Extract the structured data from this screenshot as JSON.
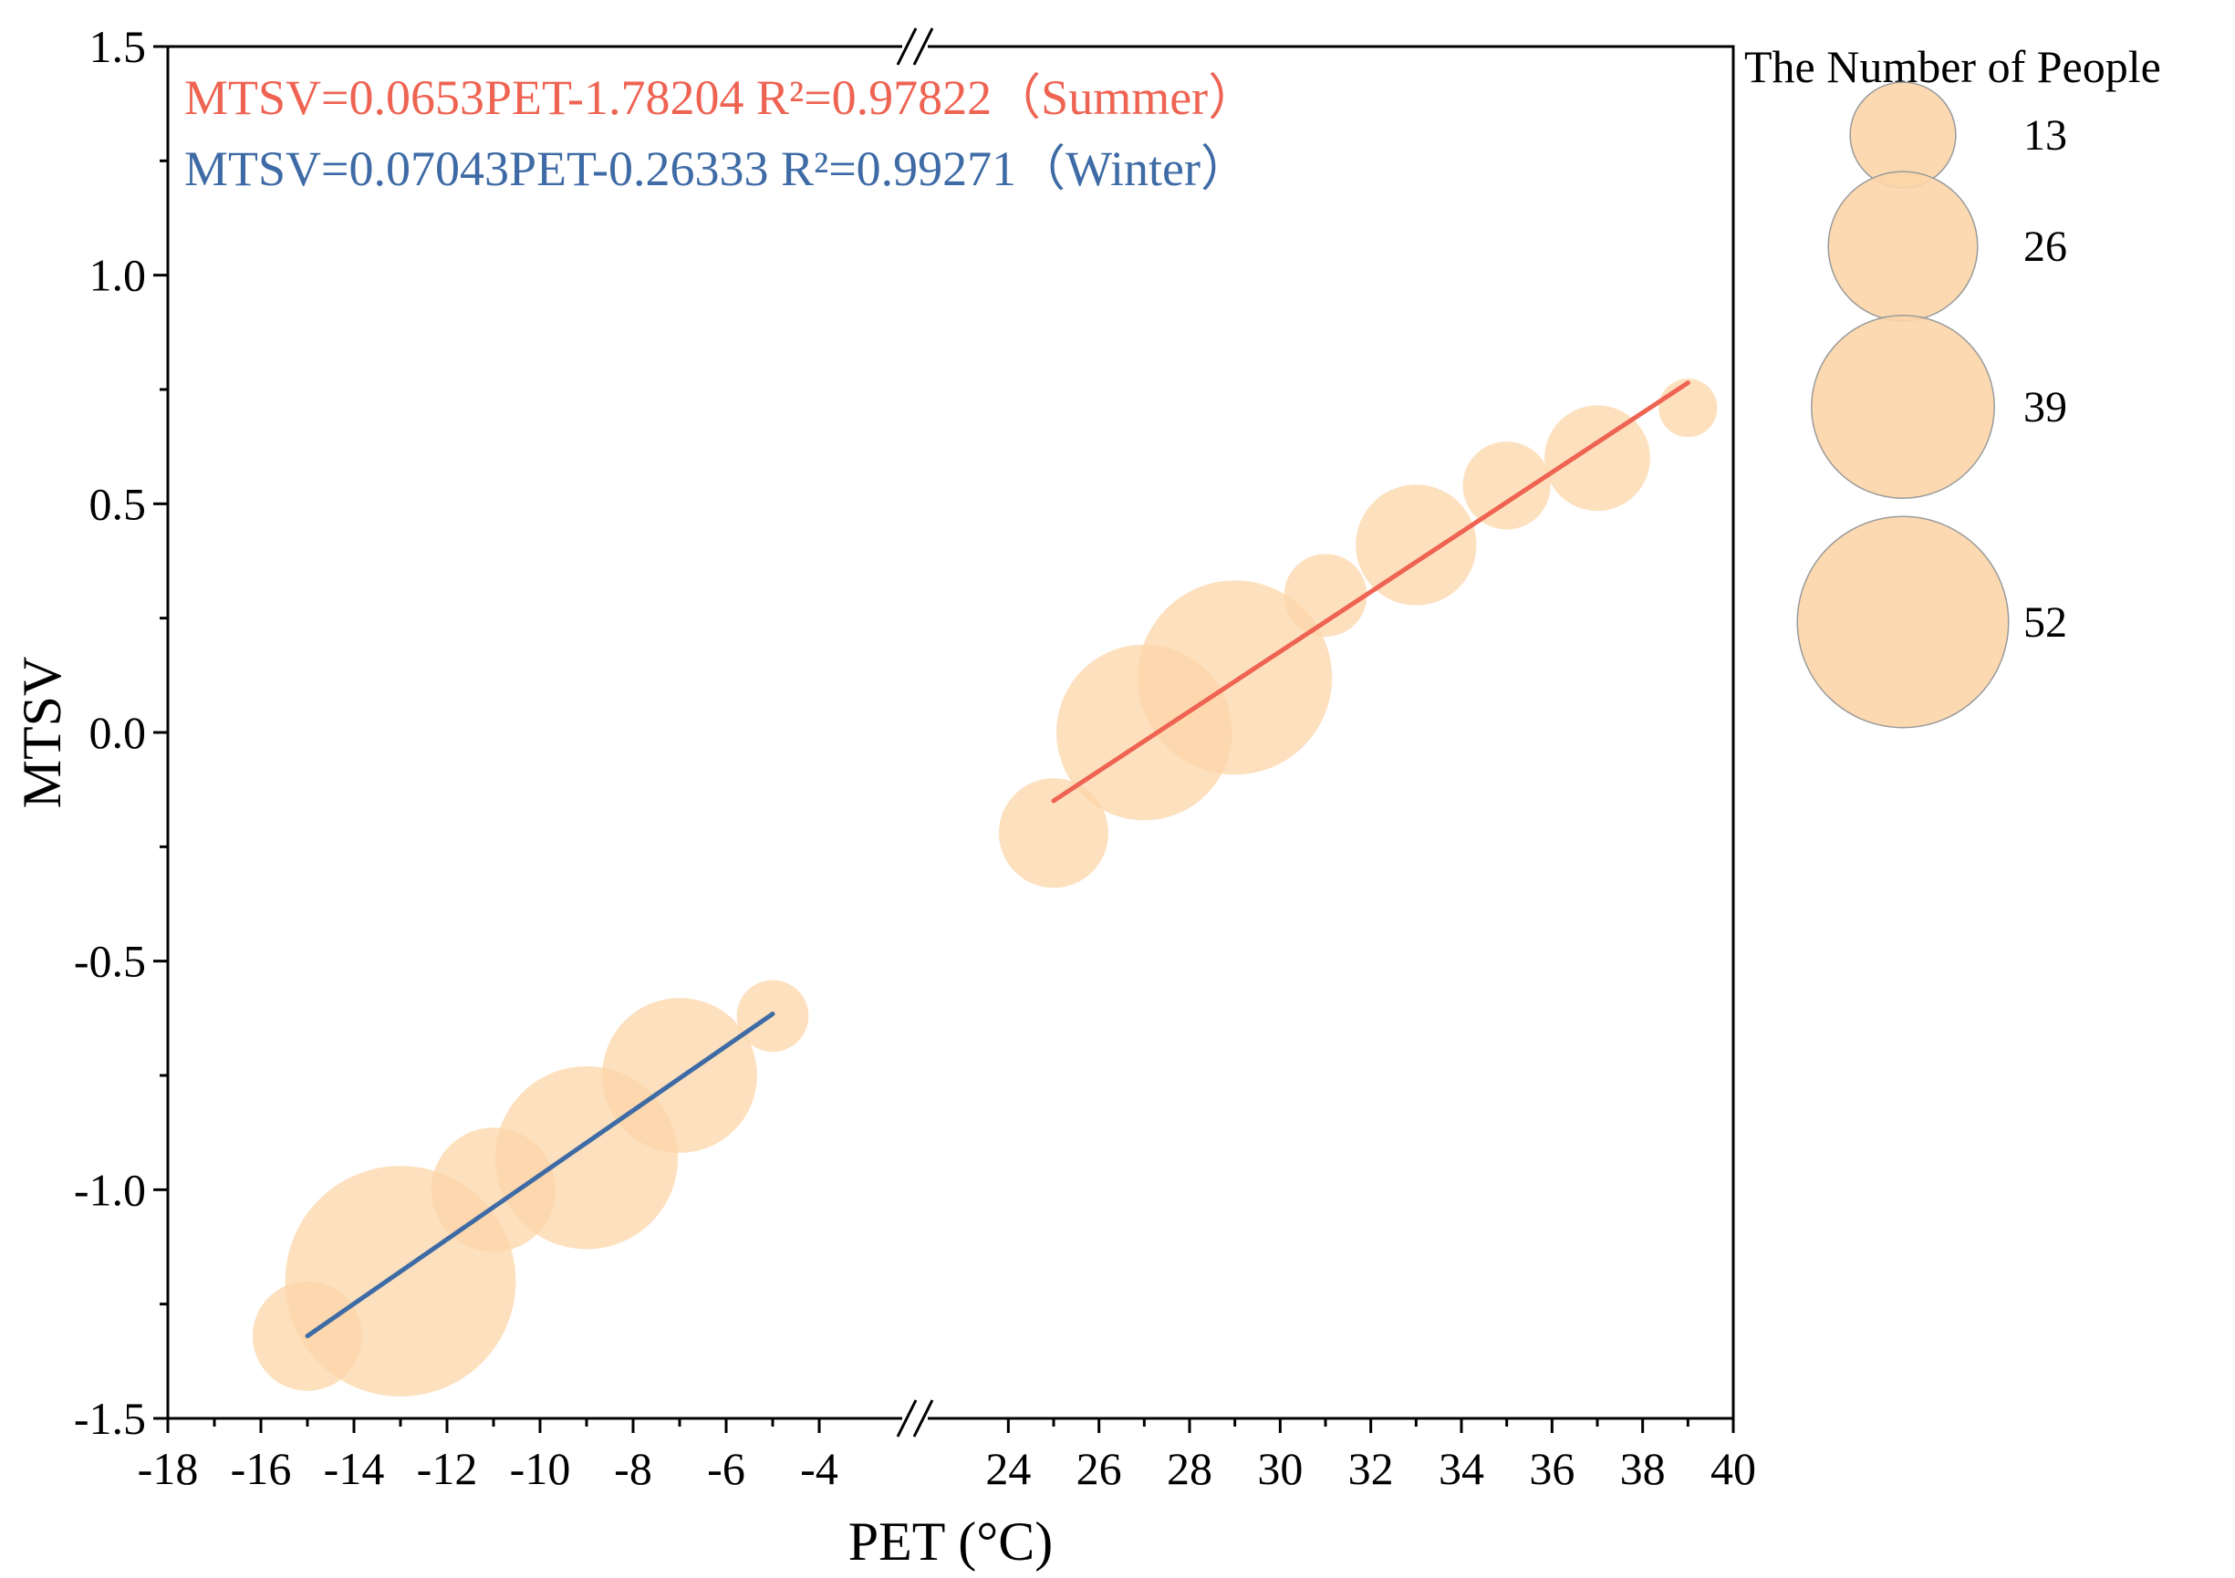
{
  "chart_data": {
    "type": "scatter",
    "subtype": "bubble-with-regression",
    "xlabel": "PET (°C)",
    "ylabel": "MTSV",
    "ylim": [
      -1.5,
      1.5
    ],
    "y_ticks": [
      {
        "value": -1.5,
        "label": "-1.5"
      },
      {
        "value": -1.0,
        "label": "-1.0"
      },
      {
        "value": -0.5,
        "label": "-0.5"
      },
      {
        "value": 0.0,
        "label": "0.0"
      },
      {
        "value": 0.5,
        "label": "0.5"
      },
      {
        "value": 1.0,
        "label": "1.0"
      },
      {
        "value": 1.5,
        "label": "1.5"
      }
    ],
    "x_axis_broken": true,
    "x_segments": [
      {
        "range": [
          -18,
          -2
        ],
        "ticks": [
          -18,
          -16,
          -14,
          -12,
          -10,
          -8,
          -6,
          -4
        ]
      },
      {
        "range": [
          22,
          40
        ],
        "ticks": [
          24,
          26,
          28,
          30,
          32,
          34,
          36,
          38,
          40
        ]
      }
    ],
    "series": [
      {
        "name": "Summer",
        "color": "#ee6352",
        "equation": "MTSV=0.0653PET-1.78204 R²=0.97822（Summer）",
        "slope": 0.0653,
        "intercept": -1.78204,
        "fit_x_range": [
          25,
          39
        ],
        "points": [
          {
            "x": 25,
            "y": -0.22,
            "n": 14
          },
          {
            "x": 27,
            "y": 0.0,
            "n": 36
          },
          {
            "x": 29,
            "y": 0.12,
            "n": 44
          },
          {
            "x": 31,
            "y": 0.3,
            "n": 8
          },
          {
            "x": 33,
            "y": 0.41,
            "n": 17
          },
          {
            "x": 35,
            "y": 0.54,
            "n": 9
          },
          {
            "x": 37,
            "y": 0.6,
            "n": 13
          },
          {
            "x": 39,
            "y": 0.71,
            "n": 4
          }
        ]
      },
      {
        "name": "Winter",
        "color": "#3e6ba5",
        "equation": "MTSV=0.07043PET-0.26333 R²=0.99271（Winter）",
        "slope": 0.07043,
        "intercept": -0.26333,
        "fit_x_range": [
          -15,
          -5
        ],
        "points": [
          {
            "x": -15,
            "y": -1.32,
            "n": 14
          },
          {
            "x": -13,
            "y": -1.2,
            "n": 62
          },
          {
            "x": -11,
            "y": -1.0,
            "n": 18
          },
          {
            "x": -9,
            "y": -0.93,
            "n": 39
          },
          {
            "x": -7,
            "y": -0.75,
            "n": 28
          },
          {
            "x": -5,
            "y": -0.62,
            "n": 6
          }
        ]
      }
    ],
    "bubble_color": "#fcd5a8",
    "bubble_edge_color": "#9a9a9a",
    "legend": {
      "title": "The Number of People",
      "sizes": [
        {
          "n": 13,
          "label": "13"
        },
        {
          "n": 26,
          "label": "26"
        },
        {
          "n": 39,
          "label": "39"
        },
        {
          "n": 52,
          "label": "52"
        }
      ],
      "placement": "right"
    }
  }
}
